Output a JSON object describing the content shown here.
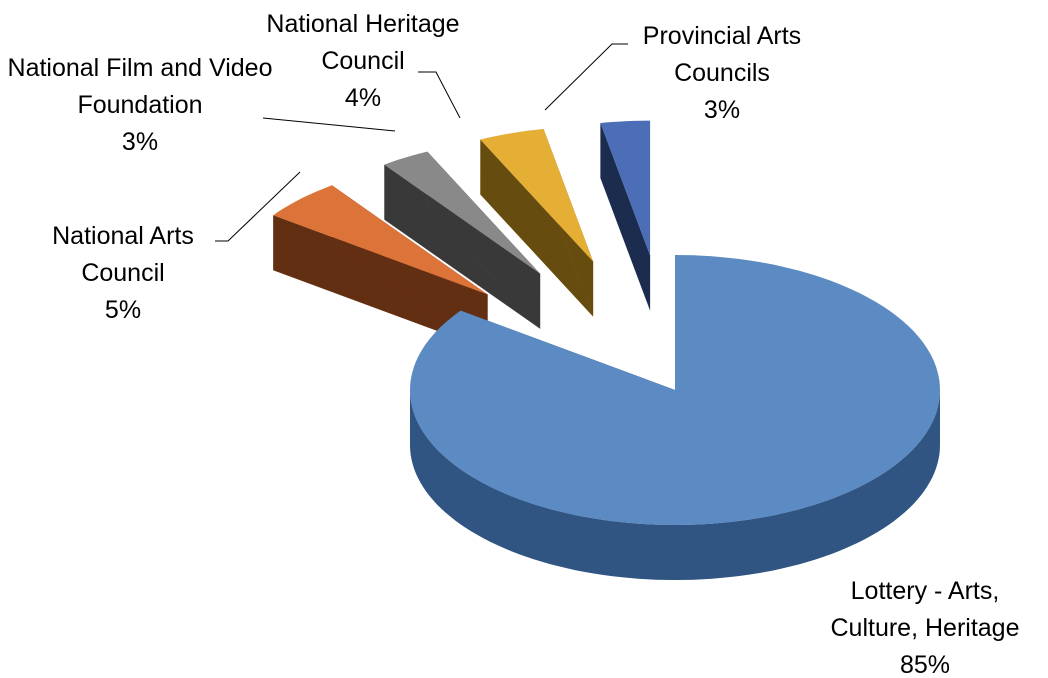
{
  "chart_data": {
    "type": "pie3d",
    "categories": [
      "Lottery - Arts, Culture, Heritage",
      "National Arts Council",
      "National Film and Video Foundation",
      "National Heritage Council",
      "Provincial Arts Councils"
    ],
    "values": [
      85,
      5,
      3,
      4,
      3
    ],
    "value_labels": [
      "85%",
      "5%",
      "3%",
      "4%",
      "3%"
    ],
    "colors": [
      "#4f81bd",
      "#d9692a",
      "#7f7f7f",
      "#e3a823",
      "#3d62b0"
    ]
  }
}
